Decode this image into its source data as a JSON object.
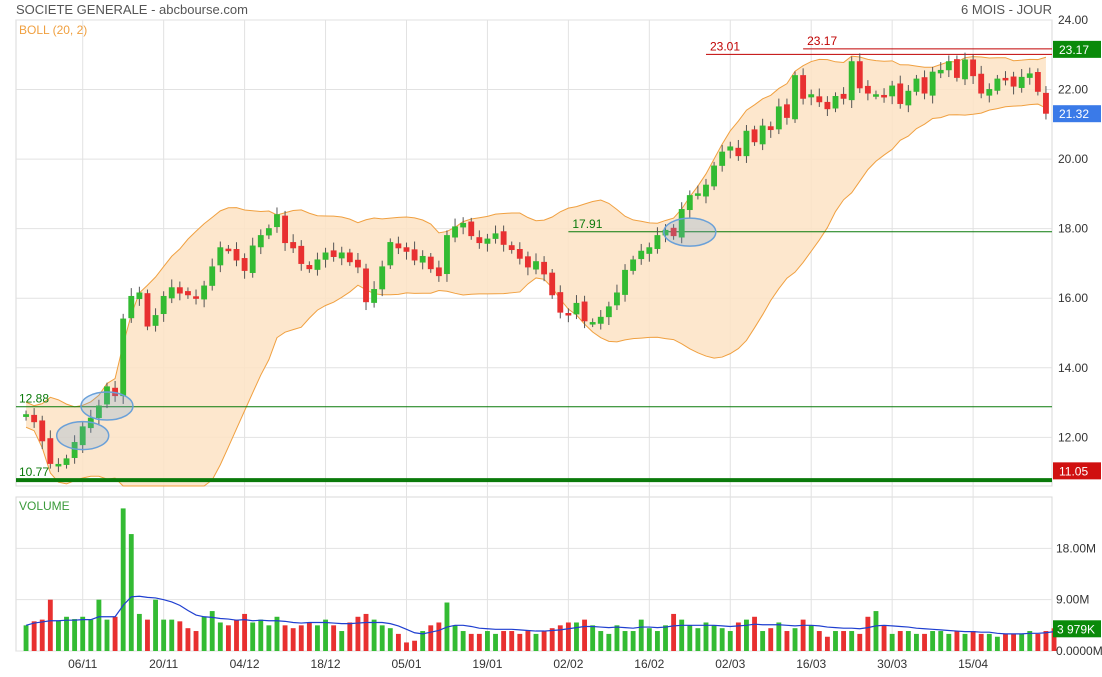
{
  "header": {
    "title": "SOCIETE GENERALE - abcbourse.com",
    "period": "6 MOIS - JOUR"
  },
  "panels": {
    "price_indicator": "BOLL (20, 2)",
    "volume_label": "VOLUME"
  },
  "colors": {
    "up": "#33bb33",
    "down": "#e83030",
    "band_fill": "#fde3c4",
    "band_line": "#f0a040",
    "volume_ma": "#1f3fd0",
    "support": "#0a7a0a",
    "resistance": "#c00000",
    "badge_green": "#0a8a0a",
    "badge_blue": "#3a7ae8",
    "badge_red": "#d01010",
    "ellipse": "#6aa0d8"
  },
  "chart_data": [
    {
      "type": "candlestick",
      "title": "SOCIETE GENERALE",
      "indicator": "BOLL (20, 2)",
      "ylim": [
        10.6,
        24.0
      ],
      "y_ticks": [
        "24.00",
        "22.00",
        "20.00",
        "18.00",
        "16.00",
        "14.00",
        "12.00"
      ],
      "x_tick_labels": [
        "06/11",
        "20/11",
        "04/12",
        "18/12",
        "05/01",
        "19/01",
        "02/02",
        "16/02",
        "02/03",
        "16/03",
        "30/03",
        "15/04"
      ],
      "price_badges": [
        {
          "label": "23.17",
          "value": 23.17,
          "color": "green"
        },
        {
          "label": "21.32",
          "value": 21.32,
          "color": "blue"
        },
        {
          "label": "11.05",
          "value": 11.05,
          "color": "red"
        }
      ],
      "levels": [
        {
          "label": "12.88",
          "value": 12.88,
          "color": "green"
        },
        {
          "label": "10.77",
          "value": 10.77,
          "color": "green"
        },
        {
          "label": "17.91",
          "value": 17.91,
          "color": "green"
        },
        {
          "label": "23.01",
          "value": 23.01,
          "color": "red"
        },
        {
          "label": "23.17",
          "value": 23.17,
          "color": "red"
        }
      ],
      "closes": [
        12.65,
        12.45,
        11.9,
        11.25,
        11.22,
        11.38,
        11.85,
        12.3,
        12.55,
        12.9,
        13.45,
        13.2,
        15.4,
        16.05,
        16.15,
        15.2,
        15.5,
        16.05,
        16.3,
        16.15,
        16.1,
        16.0,
        16.35,
        16.9,
        17.45,
        17.4,
        17.1,
        16.8,
        17.5,
        17.8,
        18.0,
        18.4,
        17.6,
        17.45,
        17.0,
        16.85,
        17.1,
        17.3,
        17.2,
        17.3,
        17.05,
        16.9,
        15.9,
        16.25,
        16.9,
        17.6,
        17.45,
        17.35,
        17.1,
        17.2,
        16.85,
        16.65,
        17.8,
        18.05,
        18.15,
        17.8,
        17.6,
        17.7,
        17.85,
        17.55,
        17.4,
        17.15,
        16.9,
        17.05,
        16.7,
        16.1,
        15.6,
        15.55,
        15.85,
        15.35,
        15.3,
        15.45,
        15.75,
        16.15,
        16.8,
        17.1,
        17.35,
        17.45,
        17.8,
        17.95,
        17.8,
        18.55,
        18.95,
        19.0,
        19.25,
        19.8,
        20.2,
        20.35,
        20.1,
        20.8,
        20.5,
        20.95,
        20.85,
        21.5,
        21.2,
        22.4,
        21.75,
        21.85,
        21.65,
        21.45,
        21.8,
        21.75,
        22.8,
        22.05,
        21.9,
        21.85,
        21.8,
        22.1,
        21.6,
        21.95,
        22.3,
        21.9,
        22.5,
        22.55,
        22.8,
        22.35,
        22.85,
        22.4,
        21.9,
        22.0,
        22.3,
        22.3,
        22.1,
        22.35,
        22.45,
        21.95,
        21.32
      ],
      "volume": {
        "ylim": [
          0,
          27
        ],
        "y_ticks": [
          "18.00M",
          "9.00M",
          "0.0000M"
        ],
        "last_label": "3 979K",
        "values": [
          4.5,
          5.2,
          5.5,
          9.0,
          5.3,
          6.0,
          5.6,
          6.0,
          5.5,
          9.0,
          5.5,
          6.0,
          25.0,
          20.5,
          6.5,
          5.5,
          9.0,
          5.5,
          5.5,
          5.2,
          4.0,
          3.5,
          6.0,
          7.0,
          5.0,
          4.5,
          5.5,
          6.5,
          5.0,
          5.5,
          4.5,
          6.0,
          4.5,
          4.0,
          4.5,
          5.0,
          4.5,
          5.5,
          4.5,
          3.5,
          5.0,
          6.0,
          6.5,
          5.5,
          4.5,
          4.0,
          3.0,
          1.5,
          1.8,
          3.5,
          4.5,
          5.0,
          8.5,
          4.5,
          3.5,
          3.0,
          3.0,
          3.5,
          3.0,
          3.5,
          3.5,
          3.0,
          3.5,
          3.0,
          3.5,
          4.0,
          4.5,
          5.0,
          5.0,
          5.5,
          4.5,
          3.5,
          3.0,
          4.5,
          3.5,
          3.5,
          5.5,
          4.0,
          3.5,
          4.5,
          6.5,
          5.5,
          4.5,
          4.0,
          5.0,
          4.5,
          4.0,
          3.5,
          5.0,
          5.5,
          6.0,
          3.5,
          4.0,
          5.0,
          3.5,
          4.0,
          5.5,
          4.5,
          3.5,
          2.5,
          3.5,
          3.5,
          3.5,
          3.0,
          6.0,
          7.0,
          4.5,
          3.0,
          3.5,
          3.5,
          3.0,
          3.0,
          3.5,
          3.5,
          3.0,
          3.5,
          3.0,
          3.5,
          3.0,
          3.0,
          2.5,
          3.0,
          3.0,
          3.0,
          3.5,
          3.0,
          3.5,
          3.98
        ],
        "ma_values": [
          4.5,
          4.9,
          5.1,
          5.3,
          5.3,
          5.4,
          5.4,
          5.5,
          5.5,
          6.0,
          6.0,
          6.0,
          8.0,
          9.5,
          9.6,
          9.4,
          9.3,
          9.0,
          8.6,
          8.0,
          7.1,
          6.3,
          6.0,
          5.9,
          5.7,
          5.6,
          5.4,
          5.5,
          5.3,
          5.4,
          5.3,
          5.3,
          5.2,
          5.0,
          4.9,
          5.0,
          5.0,
          5.0,
          4.9,
          4.8,
          4.8,
          4.9,
          5.0,
          5.0,
          5.0,
          4.8,
          4.4,
          3.8,
          3.2,
          3.0,
          3.3,
          3.6,
          4.2,
          4.5,
          4.5,
          4.3,
          4.0,
          3.9,
          3.8,
          3.8,
          3.8,
          3.7,
          3.6,
          3.5,
          3.5,
          3.6,
          3.7,
          3.9,
          4.1,
          4.3,
          4.3,
          4.2,
          4.1,
          4.2,
          4.1,
          4.0,
          4.2,
          4.2,
          4.1,
          4.2,
          4.4,
          4.5,
          4.5,
          4.5,
          4.5,
          4.5,
          4.4,
          4.3,
          4.4,
          4.5,
          4.7,
          4.6,
          4.6,
          4.6,
          4.5,
          4.4,
          4.5,
          4.5,
          4.4,
          4.2,
          4.1,
          4.0,
          4.0,
          3.9,
          4.1,
          4.4,
          4.5,
          4.4,
          4.3,
          4.2,
          4.0,
          3.9,
          3.8,
          3.7,
          3.6,
          3.5,
          3.4,
          3.4,
          3.3,
          3.3,
          3.1,
          3.0,
          3.0,
          3.0,
          3.1,
          3.1,
          3.2,
          3.4
        ]
      }
    }
  ]
}
